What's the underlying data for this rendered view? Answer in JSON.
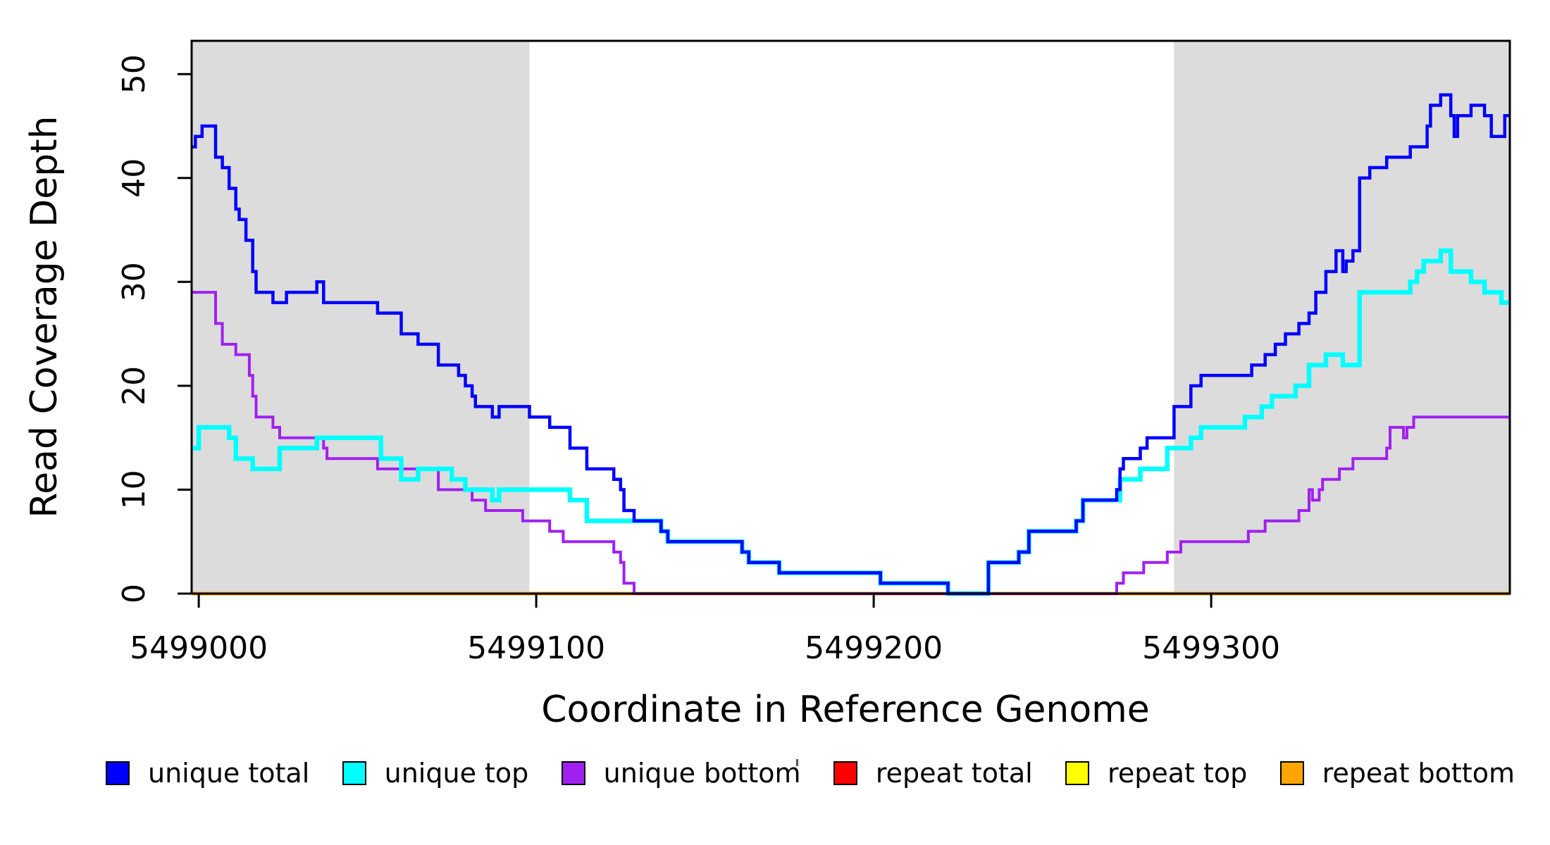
{
  "figure": {
    "x_axis_title": "Coordinate in Reference Genome",
    "y_axis_title": "Read Coverage Depth"
  },
  "chart_data": {
    "type": "line",
    "subtype": "step-coverage-plot",
    "title": "",
    "xlabel": "Coordinate in Reference Genome",
    "ylabel": "Read Coverage Depth",
    "xlim": [
      5498997.9,
      5499388.5
    ],
    "ylim": [
      0,
      53.2
    ],
    "grid": "off",
    "x_ticks": [
      {
        "value": 5499000,
        "label": "5499000"
      },
      {
        "value": 5499100,
        "label": "5499100"
      },
      {
        "value": 5499200,
        "label": "5499200"
      },
      {
        "value": 5499300,
        "label": "5499300"
      }
    ],
    "y_ticks": [
      {
        "value": 0,
        "label": "0"
      },
      {
        "value": 10,
        "label": "10"
      },
      {
        "value": 20,
        "label": "20"
      },
      {
        "value": 30,
        "label": "30"
      },
      {
        "value": 40,
        "label": "40"
      },
      {
        "value": 50,
        "label": "50"
      }
    ],
    "shaded_regions": [
      {
        "x0": 5498997.9,
        "x1": 5499098,
        "color": "#DCDCDC"
      },
      {
        "x0": 5499289,
        "x1": 5499388.5,
        "color": "#DCDCDC"
      }
    ],
    "series": [
      {
        "name": "repeat total",
        "color": "#FF0000",
        "lw": 5,
        "points": [
          [
            5498998,
            0
          ]
        ]
      },
      {
        "name": "repeat top",
        "color": "#FFFF00",
        "lw": 5,
        "points": [
          [
            5498998,
            0
          ]
        ]
      },
      {
        "name": "repeat bottom",
        "color": "#FFA500",
        "lw": 5,
        "points": [
          [
            5498998,
            0
          ]
        ]
      },
      {
        "name": "unique bottom",
        "color": "#A020F0",
        "lw": 4,
        "points": [
          [
            5498998,
            29
          ],
          [
            5499005,
            26
          ],
          [
            5499007,
            24
          ],
          [
            5499011,
            23
          ],
          [
            5499015,
            21
          ],
          [
            5499016,
            19
          ],
          [
            5499017,
            17
          ],
          [
            5499022,
            16
          ],
          [
            5499024,
            15
          ],
          [
            5499037,
            14
          ],
          [
            5499038,
            13
          ],
          [
            5499053,
            12
          ],
          [
            5499071,
            10
          ],
          [
            5499081,
            9
          ],
          [
            5499085,
            8
          ],
          [
            5499096,
            7
          ],
          [
            5499104,
            6
          ],
          [
            5499108,
            5
          ],
          [
            5499123,
            4
          ],
          [
            5499125,
            3
          ],
          [
            5499126,
            1
          ],
          [
            5499129,
            0
          ],
          [
            5499272,
            1
          ],
          [
            5499274,
            2
          ],
          [
            5499280,
            3
          ],
          [
            5499287,
            4
          ],
          [
            5499291,
            5
          ],
          [
            5499311,
            6
          ],
          [
            5499316,
            7
          ],
          [
            5499326,
            8
          ],
          [
            5499329,
            10
          ],
          [
            5499330,
            9
          ],
          [
            5499332,
            10
          ],
          [
            5499333,
            11
          ],
          [
            5499338,
            12
          ],
          [
            5499342,
            13
          ],
          [
            5499352,
            14
          ],
          [
            5499353,
            16
          ],
          [
            5499357,
            15
          ],
          [
            5499358,
            16
          ],
          [
            5499360,
            17
          ]
        ]
      },
      {
        "name": "unique top",
        "color": "#00FFFF",
        "lw": 6.5,
        "points": [
          [
            5498998,
            14
          ],
          [
            5499000,
            16
          ],
          [
            5499009,
            15
          ],
          [
            5499011,
            13
          ],
          [
            5499016,
            12
          ],
          [
            5499024,
            14
          ],
          [
            5499035,
            15
          ],
          [
            5499054,
            13
          ],
          [
            5499060,
            11
          ],
          [
            5499065,
            12
          ],
          [
            5499075,
            11
          ],
          [
            5499079,
            10
          ],
          [
            5499087,
            9
          ],
          [
            5499089,
            10
          ],
          [
            5499110,
            9
          ],
          [
            5499115,
            7
          ],
          [
            5499137,
            6
          ],
          [
            5499139,
            5
          ],
          [
            5499161,
            4
          ],
          [
            5499163,
            3
          ],
          [
            5499172,
            2
          ],
          [
            5499202,
            1
          ],
          [
            5499222,
            0
          ],
          [
            5499234,
            3
          ],
          [
            5499243,
            4
          ],
          [
            5499246,
            6
          ],
          [
            5499260,
            7
          ],
          [
            5499262,
            9
          ],
          [
            5499273,
            11
          ],
          [
            5499279,
            12
          ],
          [
            5499287,
            14
          ],
          [
            5499294,
            15
          ],
          [
            5499297,
            16
          ],
          [
            5499310,
            17
          ],
          [
            5499315,
            18
          ],
          [
            5499318,
            19
          ],
          [
            5499325,
            20
          ],
          [
            5499329,
            22
          ],
          [
            5499334,
            23
          ],
          [
            5499339,
            22
          ],
          [
            5499344,
            29
          ],
          [
            5499359,
            30
          ],
          [
            5499361,
            31
          ],
          [
            5499363,
            32
          ],
          [
            5499368,
            33
          ],
          [
            5499371,
            31
          ],
          [
            5499377,
            30
          ],
          [
            5499381,
            29
          ],
          [
            5499386,
            28
          ]
        ]
      },
      {
        "name": "unique total",
        "color": "#0000FF",
        "lw": 4.5,
        "points": [
          [
            5498998,
            43
          ],
          [
            5498999,
            44
          ],
          [
            5499001,
            45
          ],
          [
            5499005,
            42
          ],
          [
            5499007,
            41
          ],
          [
            5499009,
            39
          ],
          [
            5499011,
            37
          ],
          [
            5499012,
            36
          ],
          [
            5499014,
            34
          ],
          [
            5499016,
            31
          ],
          [
            5499017,
            29
          ],
          [
            5499022,
            28
          ],
          [
            5499026,
            29
          ],
          [
            5499035,
            30
          ],
          [
            5499037,
            28
          ],
          [
            5499053,
            27
          ],
          [
            5499060,
            25
          ],
          [
            5499065,
            24
          ],
          [
            5499071,
            22
          ],
          [
            5499077,
            21
          ],
          [
            5499079,
            20
          ],
          [
            5499081,
            19
          ],
          [
            5499082,
            18
          ],
          [
            5499087,
            17
          ],
          [
            5499089,
            18
          ],
          [
            5499098,
            17
          ],
          [
            5499104,
            16
          ],
          [
            5499110,
            14
          ],
          [
            5499115,
            12
          ],
          [
            5499123,
            11
          ],
          [
            5499125,
            10
          ],
          [
            5499126,
            8
          ],
          [
            5499129,
            7
          ],
          [
            5499137,
            6
          ],
          [
            5499139,
            5
          ],
          [
            5499161,
            4
          ],
          [
            5499163,
            3
          ],
          [
            5499172,
            2
          ],
          [
            5499202,
            1
          ],
          [
            5499222,
            0
          ],
          [
            5499234,
            3
          ],
          [
            5499243,
            4
          ],
          [
            5499246,
            6
          ],
          [
            5499260,
            7
          ],
          [
            5499262,
            9
          ],
          [
            5499272,
            10
          ],
          [
            5499273,
            12
          ],
          [
            5499274,
            13
          ],
          [
            5499279,
            14
          ],
          [
            5499281,
            15
          ],
          [
            5499289,
            18
          ],
          [
            5499294,
            20
          ],
          [
            5499297,
            21
          ],
          [
            5499312,
            22
          ],
          [
            5499316,
            23
          ],
          [
            5499319,
            24
          ],
          [
            5499322,
            25
          ],
          [
            5499326,
            26
          ],
          [
            5499329,
            27
          ],
          [
            5499331,
            29
          ],
          [
            5499334,
            31
          ],
          [
            5499337,
            33
          ],
          [
            5499339,
            31
          ],
          [
            5499340,
            32
          ],
          [
            5499342,
            33
          ],
          [
            5499344,
            40
          ],
          [
            5499347,
            41
          ],
          [
            5499352,
            42
          ],
          [
            5499359,
            43
          ],
          [
            5499364,
            45
          ],
          [
            5499365,
            47
          ],
          [
            5499368,
            48
          ],
          [
            5499371,
            46
          ],
          [
            5499372,
            44
          ],
          [
            5499373,
            46
          ],
          [
            5499377,
            47
          ],
          [
            5499381,
            46
          ],
          [
            5499383,
            44
          ],
          [
            5499387,
            46
          ]
        ]
      }
    ],
    "legend": {
      "position": "bottom",
      "items": [
        {
          "label": "unique total",
          "color": "#0000FF"
        },
        {
          "label": "unique top",
          "color": "#00FFFF"
        },
        {
          "label": "unique bottom",
          "color": "#A020F0"
        },
        {
          "label": "repeat total",
          "color": "#FF0000"
        },
        {
          "label": "repeat top",
          "color": "#FFFF00"
        },
        {
          "label": "repeat bottom",
          "color": "#FFA500"
        }
      ]
    }
  }
}
